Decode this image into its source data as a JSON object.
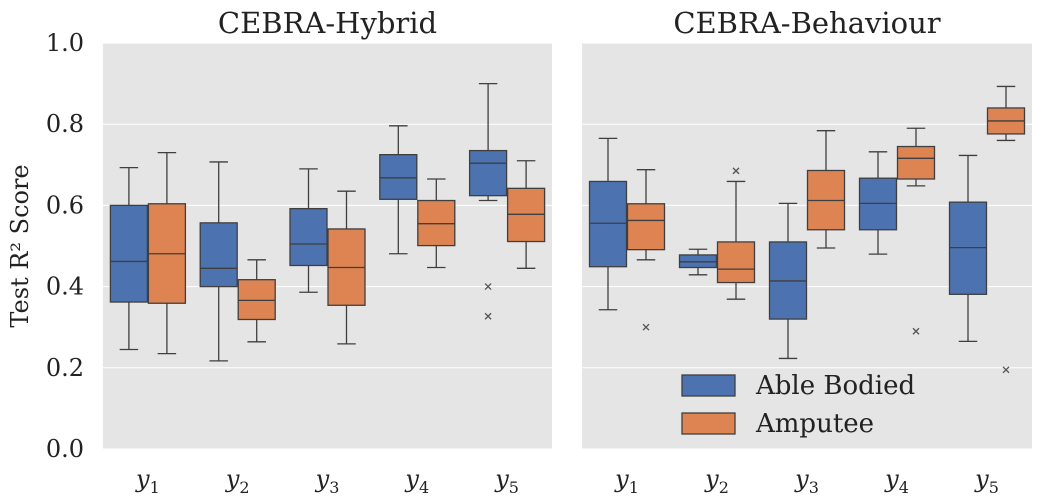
{
  "chart_data": {
    "type": "box",
    "ylabel": "Test R² Score",
    "ylim": [
      0,
      1
    ],
    "yticks": [
      "0.0",
      "0.2",
      "0.4",
      "0.6",
      "0.8",
      "1.0"
    ],
    "categories": [
      {
        "base": "y",
        "sub": "1"
      },
      {
        "base": "y",
        "sub": "2"
      },
      {
        "base": "y",
        "sub": "3"
      },
      {
        "base": "y",
        "sub": "4"
      },
      {
        "base": "y",
        "sub": "5"
      }
    ],
    "legend": {
      "placement": "lower-right of right panel",
      "entries": [
        {
          "label": "Able Bodied",
          "color": "#4c72b0"
        },
        {
          "label": "Amputee",
          "color": "#dd8452"
        }
      ]
    },
    "grid": true,
    "panels": [
      {
        "title": "CEBRA-Hybrid",
        "series": [
          {
            "name": "Able Bodied",
            "color": "#4c72b0",
            "boxes": [
              {
                "min": 0.245,
                "q1": 0.362,
                "median": 0.462,
                "q3": 0.6,
                "max": 0.693,
                "outliers": []
              },
              {
                "min": 0.217,
                "q1": 0.4,
                "median": 0.445,
                "q3": 0.557,
                "max": 0.707,
                "outliers": []
              },
              {
                "min": 0.386,
                "q1": 0.452,
                "median": 0.505,
                "q3": 0.592,
                "max": 0.69,
                "outliers": []
              },
              {
                "min": 0.481,
                "q1": 0.615,
                "median": 0.668,
                "q3": 0.725,
                "max": 0.796,
                "outliers": []
              },
              {
                "min": 0.612,
                "q1": 0.624,
                "median": 0.704,
                "q3": 0.735,
                "max": 0.9,
                "outliers": [
                  0.4,
                  0.327
                ]
              }
            ]
          },
          {
            "name": "Amputee",
            "color": "#dd8452",
            "boxes": [
              {
                "min": 0.235,
                "q1": 0.359,
                "median": 0.481,
                "q3": 0.604,
                "max": 0.73,
                "outliers": []
              },
              {
                "min": 0.264,
                "q1": 0.319,
                "median": 0.366,
                "q3": 0.417,
                "max": 0.466,
                "outliers": []
              },
              {
                "min": 0.259,
                "q1": 0.354,
                "median": 0.447,
                "q3": 0.542,
                "max": 0.635,
                "outliers": []
              },
              {
                "min": 0.447,
                "q1": 0.501,
                "median": 0.555,
                "q3": 0.612,
                "max": 0.665,
                "outliers": []
              },
              {
                "min": 0.445,
                "q1": 0.511,
                "median": 0.578,
                "q3": 0.642,
                "max": 0.71,
                "outliers": []
              }
            ]
          }
        ]
      },
      {
        "title": "CEBRA-Behaviour",
        "series": [
          {
            "name": "Able Bodied",
            "color": "#4c72b0",
            "boxes": [
              {
                "min": 0.343,
                "q1": 0.449,
                "median": 0.556,
                "q3": 0.659,
                "max": 0.765,
                "outliers": []
              },
              {
                "min": 0.429,
                "q1": 0.447,
                "median": 0.461,
                "q3": 0.478,
                "max": 0.492,
                "outliers": []
              },
              {
                "min": 0.223,
                "q1": 0.32,
                "median": 0.414,
                "q3": 0.51,
                "max": 0.605,
                "outliers": []
              },
              {
                "min": 0.48,
                "q1": 0.54,
                "median": 0.605,
                "q3": 0.667,
                "max": 0.732,
                "outliers": []
              },
              {
                "min": 0.265,
                "q1": 0.381,
                "median": 0.496,
                "q3": 0.608,
                "max": 0.723,
                "outliers": []
              }
            ]
          },
          {
            "name": "Amputee",
            "color": "#dd8452",
            "boxes": [
              {
                "min": 0.466,
                "q1": 0.491,
                "median": 0.563,
                "q3": 0.604,
                "max": 0.688,
                "outliers": [
                  0.3
                ]
              },
              {
                "min": 0.369,
                "q1": 0.41,
                "median": 0.443,
                "q3": 0.51,
                "max": 0.659,
                "outliers": [
                  0.685
                ]
              },
              {
                "min": 0.495,
                "q1": 0.54,
                "median": 0.612,
                "q3": 0.686,
                "max": 0.784,
                "outliers": []
              },
              {
                "min": 0.648,
                "q1": 0.665,
                "median": 0.716,
                "q3": 0.745,
                "max": 0.79,
                "outliers": [
                  0.29
                ]
              },
              {
                "min": 0.76,
                "q1": 0.776,
                "median": 0.808,
                "q3": 0.84,
                "max": 0.893,
                "outliers": [
                  0.195
                ]
              }
            ]
          }
        ]
      }
    ]
  }
}
